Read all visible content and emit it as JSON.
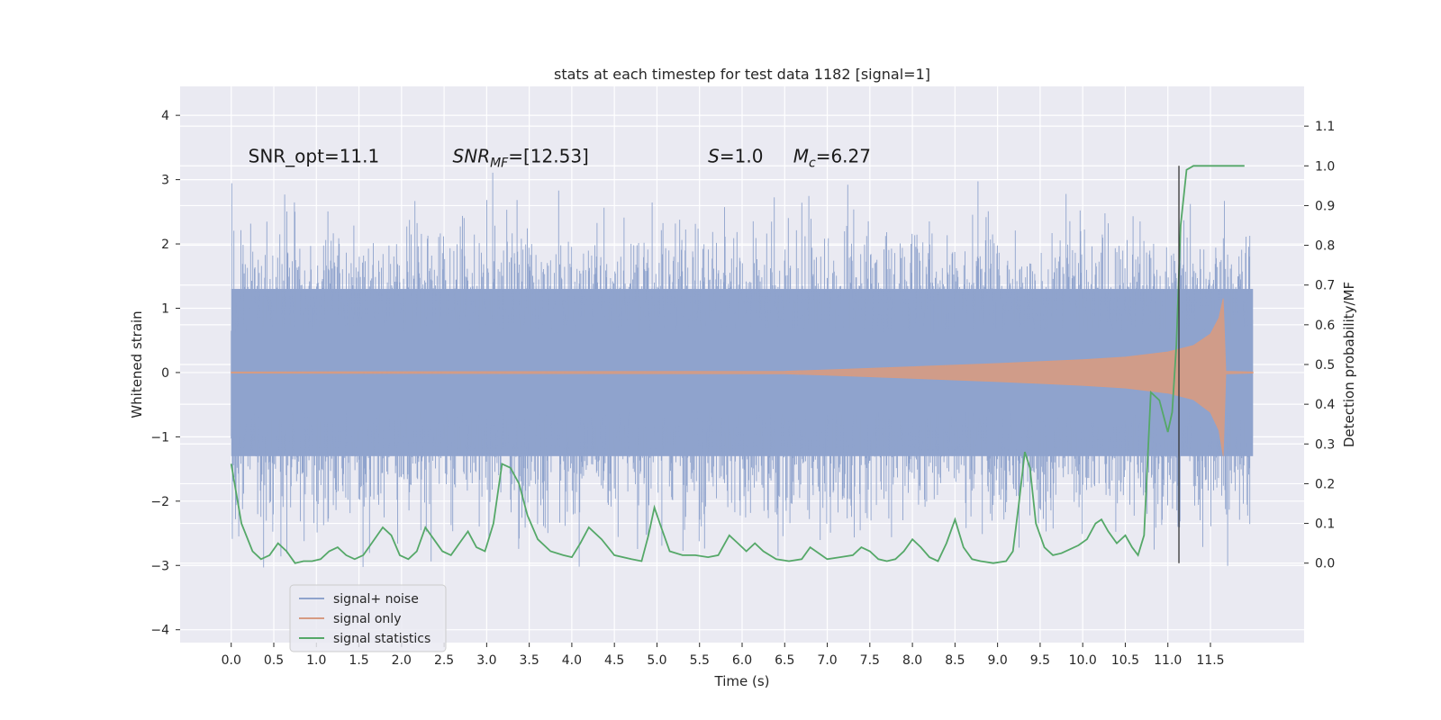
{
  "chart_data": {
    "type": "line",
    "title": "stats at each timestep for test data 1182 [signal=1]",
    "xlabel": "Time (s)",
    "ylabel": "Whitened strain",
    "ylabel_right": "Detection probability/MF",
    "xlim": [
      -0.6,
      12.6
    ],
    "ylim": [
      -4.2,
      4.45
    ],
    "ylim_right": [
      -0.2,
      1.2
    ],
    "x_ticks": [
      "0.0",
      "0.5",
      "1.0",
      "1.5",
      "2.0",
      "2.5",
      "3.0",
      "3.5",
      "4.0",
      "4.5",
      "5.0",
      "5.5",
      "6.0",
      "6.5",
      "7.0",
      "7.5",
      "8.0",
      "8.5",
      "9.0",
      "9.5",
      "10.0",
      "10.5",
      "11.0",
      "11.5"
    ],
    "y_ticks": [
      "4",
      "3",
      "2",
      "1",
      "0",
      "−1",
      "−2",
      "−3",
      "−4"
    ],
    "y_ticks_right": [
      "1.1",
      "1.0",
      "0.9",
      "0.8",
      "0.7",
      "0.6",
      "0.5",
      "0.4",
      "0.3",
      "0.2",
      "0.1",
      "0.0"
    ],
    "grid": true,
    "legend_position": "lower-left",
    "annotations": [
      {
        "text": "SNR_opt=11.1",
        "x": 0.2,
        "y": 3.27
      },
      {
        "text": "SNR",
        "sub": "MF",
        "suffix": "=[12.53]",
        "x": 2.6,
        "y": 3.27
      },
      {
        "text": "S",
        "suffix": "=1.0",
        "x": 5.6,
        "y": 3.27
      },
      {
        "text": "M",
        "sub": "c",
        "suffix": "=6.27",
        "x": 6.6,
        "y": 3.27
      }
    ],
    "vline": {
      "x": 11.13,
      "y_range_right": [
        0.0,
        1.0
      ]
    },
    "series": [
      {
        "name": "signal+ noise",
        "color": "#8fa3cd",
        "x_range": [
          0.0,
          12.0
        ],
        "core_amplitude": 1.3,
        "bulk_amplitude": 2.0,
        "peak_amplitude": 4.1
      },
      {
        "name": "signal only",
        "color": "#d79b82",
        "envelope": {
          "x": [
            0.0,
            6.5,
            7.0,
            8.0,
            9.0,
            10.0,
            10.5,
            11.0,
            11.3,
            11.5,
            11.6,
            11.65,
            11.68,
            12.0
          ],
          "upper": [
            0.01,
            0.02,
            0.04,
            0.09,
            0.14,
            0.2,
            0.24,
            0.32,
            0.42,
            0.6,
            0.85,
            1.15,
            0.02,
            0.01
          ],
          "lower": [
            -0.01,
            -0.02,
            -0.04,
            -0.09,
            -0.14,
            -0.2,
            -0.24,
            -0.32,
            -0.42,
            -0.62,
            -0.9,
            -1.3,
            -0.02,
            -0.01
          ]
        }
      },
      {
        "name": "signal statistics",
        "color": "#55a868",
        "axis": "right",
        "x": [
          0.0,
          0.12,
          0.25,
          0.35,
          0.45,
          0.55,
          0.65,
          0.75,
          0.85,
          0.95,
          1.05,
          1.15,
          1.25,
          1.35,
          1.45,
          1.55,
          1.65,
          1.78,
          1.88,
          1.98,
          2.08,
          2.18,
          2.28,
          2.38,
          2.48,
          2.58,
          2.68,
          2.78,
          2.88,
          2.98,
          3.08,
          3.18,
          3.28,
          3.38,
          3.48,
          3.6,
          3.75,
          3.9,
          4.0,
          4.1,
          4.2,
          4.35,
          4.5,
          4.7,
          4.82,
          4.9,
          4.97,
          5.05,
          5.15,
          5.3,
          5.45,
          5.6,
          5.72,
          5.85,
          5.95,
          6.05,
          6.15,
          6.25,
          6.4,
          6.55,
          6.7,
          6.8,
          6.9,
          7.0,
          7.15,
          7.3,
          7.4,
          7.5,
          7.6,
          7.7,
          7.8,
          7.9,
          8.0,
          8.1,
          8.2,
          8.3,
          8.4,
          8.5,
          8.6,
          8.7,
          8.8,
          8.95,
          9.1,
          9.18,
          9.25,
          9.32,
          9.38,
          9.45,
          9.55,
          9.65,
          9.75,
          9.85,
          9.95,
          10.05,
          10.15,
          10.22,
          10.3,
          10.4,
          10.5,
          10.58,
          10.65,
          10.72,
          10.8,
          10.9,
          11.0,
          11.05,
          11.1,
          11.15,
          11.22,
          11.3,
          11.4,
          11.6,
          11.9
        ],
        "values": [
          0.25,
          0.1,
          0.03,
          0.01,
          0.02,
          0.05,
          0.03,
          0.0,
          0.005,
          0.005,
          0.01,
          0.03,
          0.04,
          0.02,
          0.01,
          0.02,
          0.05,
          0.09,
          0.07,
          0.02,
          0.01,
          0.03,
          0.09,
          0.06,
          0.03,
          0.02,
          0.05,
          0.08,
          0.04,
          0.03,
          0.1,
          0.25,
          0.24,
          0.2,
          0.12,
          0.06,
          0.03,
          0.02,
          0.015,
          0.05,
          0.09,
          0.06,
          0.02,
          0.01,
          0.005,
          0.07,
          0.14,
          0.09,
          0.03,
          0.02,
          0.02,
          0.015,
          0.02,
          0.07,
          0.05,
          0.03,
          0.05,
          0.03,
          0.01,
          0.005,
          0.01,
          0.04,
          0.025,
          0.01,
          0.015,
          0.02,
          0.04,
          0.03,
          0.01,
          0.005,
          0.01,
          0.03,
          0.06,
          0.04,
          0.015,
          0.005,
          0.05,
          0.11,
          0.04,
          0.01,
          0.005,
          0.0,
          0.005,
          0.03,
          0.15,
          0.28,
          0.24,
          0.1,
          0.04,
          0.02,
          0.025,
          0.035,
          0.045,
          0.06,
          0.1,
          0.11,
          0.08,
          0.05,
          0.07,
          0.04,
          0.02,
          0.07,
          0.43,
          0.41,
          0.33,
          0.38,
          0.55,
          0.85,
          0.99,
          1.0,
          1.0,
          1.0,
          1.0
        ]
      }
    ]
  }
}
